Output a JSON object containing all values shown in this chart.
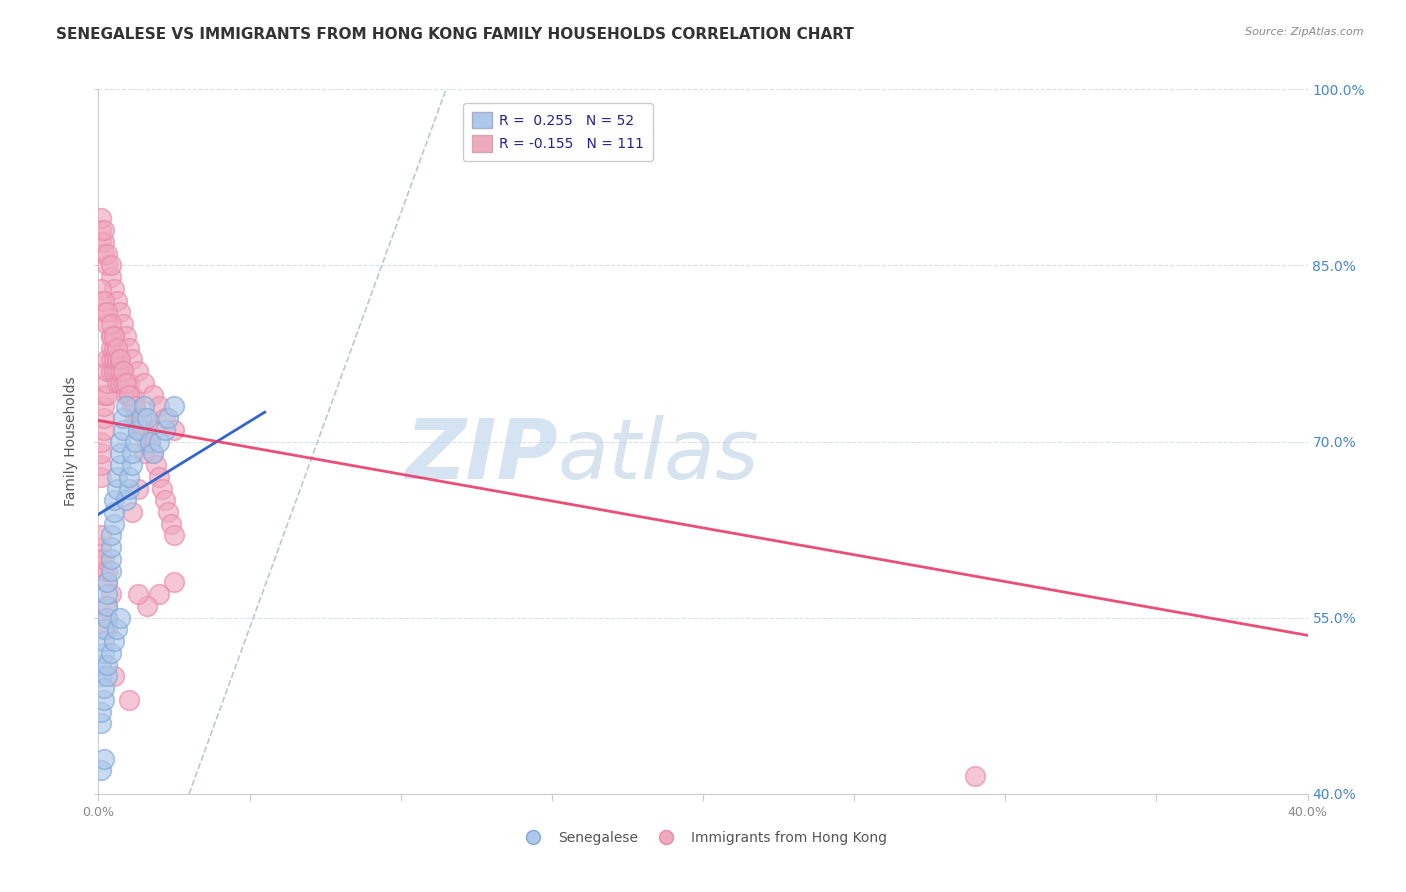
{
  "title": "SENEGALESE VS IMMIGRANTS FROM HONG KONG FAMILY HOUSEHOLDS CORRELATION CHART",
  "source": "Source: ZipAtlas.com",
  "ylabel": "Family Households",
  "xlabel": "",
  "watermark_zip": "ZIP",
  "watermark_atlas": "atlas",
  "legend_blue_r": "R =  0.255",
  "legend_blue_n": "N = 52",
  "legend_pink_r": "R = -0.155",
  "legend_pink_n": "N = 111",
  "xlim": [
    0.0,
    0.4
  ],
  "ylim": [
    0.4,
    1.0
  ],
  "xticks": [
    0.0,
    0.05,
    0.1,
    0.15,
    0.2,
    0.25,
    0.3,
    0.35,
    0.4
  ],
  "yticks": [
    0.4,
    0.55,
    0.7,
    0.85,
    1.0
  ],
  "blue_color": "#adc8e8",
  "pink_color": "#f0aac0",
  "blue_edge": "#80a8d8",
  "pink_edge": "#e888a8",
  "trend_blue": "#3366cc",
  "trend_pink": "#e83060",
  "ref_line_color": "#b8c8d8",
  "grid_color": "#d8e0ec",
  "background_color": "#ffffff",
  "blue_scatter_x": [
    0.001,
    0.001,
    0.002,
    0.002,
    0.002,
    0.003,
    0.003,
    0.003,
    0.003,
    0.004,
    0.004,
    0.004,
    0.004,
    0.005,
    0.005,
    0.005,
    0.006,
    0.006,
    0.007,
    0.007,
    0.007,
    0.008,
    0.008,
    0.009,
    0.009,
    0.01,
    0.01,
    0.011,
    0.011,
    0.012,
    0.013,
    0.014,
    0.015,
    0.016,
    0.017,
    0.018,
    0.02,
    0.022,
    0.023,
    0.025,
    0.001,
    0.001,
    0.002,
    0.002,
    0.003,
    0.003,
    0.004,
    0.005,
    0.006,
    0.007,
    0.001,
    0.002
  ],
  "blue_scatter_y": [
    0.5,
    0.51,
    0.52,
    0.53,
    0.54,
    0.55,
    0.56,
    0.57,
    0.58,
    0.59,
    0.6,
    0.61,
    0.62,
    0.63,
    0.64,
    0.65,
    0.66,
    0.67,
    0.68,
    0.69,
    0.7,
    0.71,
    0.72,
    0.73,
    0.65,
    0.66,
    0.67,
    0.68,
    0.69,
    0.7,
    0.71,
    0.72,
    0.73,
    0.72,
    0.7,
    0.69,
    0.7,
    0.71,
    0.72,
    0.73,
    0.46,
    0.47,
    0.48,
    0.49,
    0.5,
    0.51,
    0.52,
    0.53,
    0.54,
    0.55,
    0.42,
    0.43
  ],
  "pink_scatter_x": [
    0.001,
    0.001,
    0.001,
    0.001,
    0.002,
    0.002,
    0.002,
    0.002,
    0.003,
    0.003,
    0.003,
    0.003,
    0.004,
    0.004,
    0.004,
    0.004,
    0.005,
    0.005,
    0.005,
    0.005,
    0.006,
    0.006,
    0.006,
    0.007,
    0.007,
    0.007,
    0.008,
    0.008,
    0.009,
    0.009,
    0.01,
    0.01,
    0.011,
    0.011,
    0.012,
    0.012,
    0.013,
    0.013,
    0.014,
    0.015,
    0.016,
    0.017,
    0.018,
    0.019,
    0.02,
    0.021,
    0.022,
    0.023,
    0.024,
    0.025,
    0.001,
    0.001,
    0.001,
    0.002,
    0.002,
    0.002,
    0.003,
    0.003,
    0.004,
    0.004,
    0.005,
    0.006,
    0.007,
    0.008,
    0.009,
    0.01,
    0.011,
    0.013,
    0.015,
    0.018,
    0.02,
    0.022,
    0.025,
    0.001,
    0.001,
    0.002,
    0.002,
    0.003,
    0.003,
    0.004,
    0.004,
    0.005,
    0.006,
    0.007,
    0.008,
    0.009,
    0.01,
    0.012,
    0.015,
    0.018,
    0.001,
    0.001,
    0.001,
    0.002,
    0.002,
    0.003,
    0.003,
    0.004,
    0.003,
    0.003,
    0.015,
    0.013,
    0.011,
    0.025,
    0.02,
    0.016,
    0.013,
    0.003,
    0.005,
    0.01,
    0.29
  ],
  "pink_scatter_y": [
    0.67,
    0.68,
    0.69,
    0.7,
    0.71,
    0.72,
    0.73,
    0.74,
    0.74,
    0.75,
    0.76,
    0.77,
    0.76,
    0.77,
    0.78,
    0.79,
    0.76,
    0.77,
    0.78,
    0.79,
    0.75,
    0.76,
    0.77,
    0.75,
    0.76,
    0.77,
    0.75,
    0.76,
    0.74,
    0.75,
    0.74,
    0.75,
    0.73,
    0.74,
    0.72,
    0.73,
    0.71,
    0.72,
    0.71,
    0.71,
    0.7,
    0.7,
    0.69,
    0.68,
    0.67,
    0.66,
    0.65,
    0.64,
    0.63,
    0.62,
    0.87,
    0.88,
    0.89,
    0.86,
    0.87,
    0.88,
    0.85,
    0.86,
    0.84,
    0.85,
    0.83,
    0.82,
    0.81,
    0.8,
    0.79,
    0.78,
    0.77,
    0.76,
    0.75,
    0.74,
    0.73,
    0.72,
    0.71,
    0.82,
    0.83,
    0.81,
    0.82,
    0.8,
    0.81,
    0.79,
    0.8,
    0.79,
    0.78,
    0.77,
    0.76,
    0.75,
    0.74,
    0.73,
    0.72,
    0.71,
    0.6,
    0.61,
    0.62,
    0.59,
    0.6,
    0.58,
    0.59,
    0.57,
    0.56,
    0.55,
    0.69,
    0.66,
    0.64,
    0.58,
    0.57,
    0.56,
    0.57,
    0.54,
    0.5,
    0.48,
    0.415
  ],
  "blue_trend_x0": 0.0,
  "blue_trend_x1": 0.055,
  "blue_trend_y0": 0.638,
  "blue_trend_y1": 0.725,
  "pink_trend_x0": 0.0,
  "pink_trend_x1": 0.4,
  "pink_trend_y0": 0.718,
  "pink_trend_y1": 0.535,
  "ref_line_x0": 0.03,
  "ref_line_x1": 0.115,
  "ref_line_y0": 0.4,
  "ref_line_y1": 1.0,
  "title_fontsize": 11,
  "axis_label_fontsize": 10,
  "tick_fontsize": 9,
  "legend_fontsize": 10,
  "watermark_zip_fontsize": 60,
  "watermark_atlas_fontsize": 60
}
